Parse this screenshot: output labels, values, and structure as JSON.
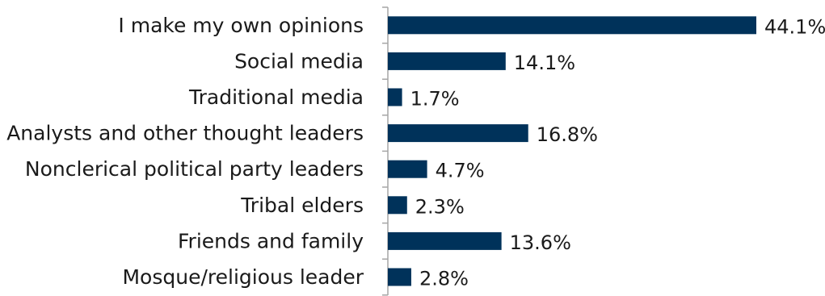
{
  "chart_data": {
    "type": "bar",
    "orientation": "horizontal",
    "categories": [
      "I make my own opinions",
      "Social media",
      "Traditional media",
      "Analysts and other thought leaders",
      "Nonclerical political party leaders",
      "Tribal elders",
      "Friends and family",
      "Mosque/religious leader"
    ],
    "values": [
      44.1,
      14.1,
      1.7,
      16.8,
      4.7,
      2.3,
      13.6,
      2.8
    ],
    "value_labels": [
      "44.1%",
      "14.1%",
      "1.7%",
      "16.8%",
      "4.7%",
      "2.3%",
      "13.6%",
      "2.8%"
    ],
    "xlim": [
      0,
      45
    ],
    "unit": "%",
    "bar_color": "#00325a",
    "grid": false,
    "legend": "none"
  }
}
